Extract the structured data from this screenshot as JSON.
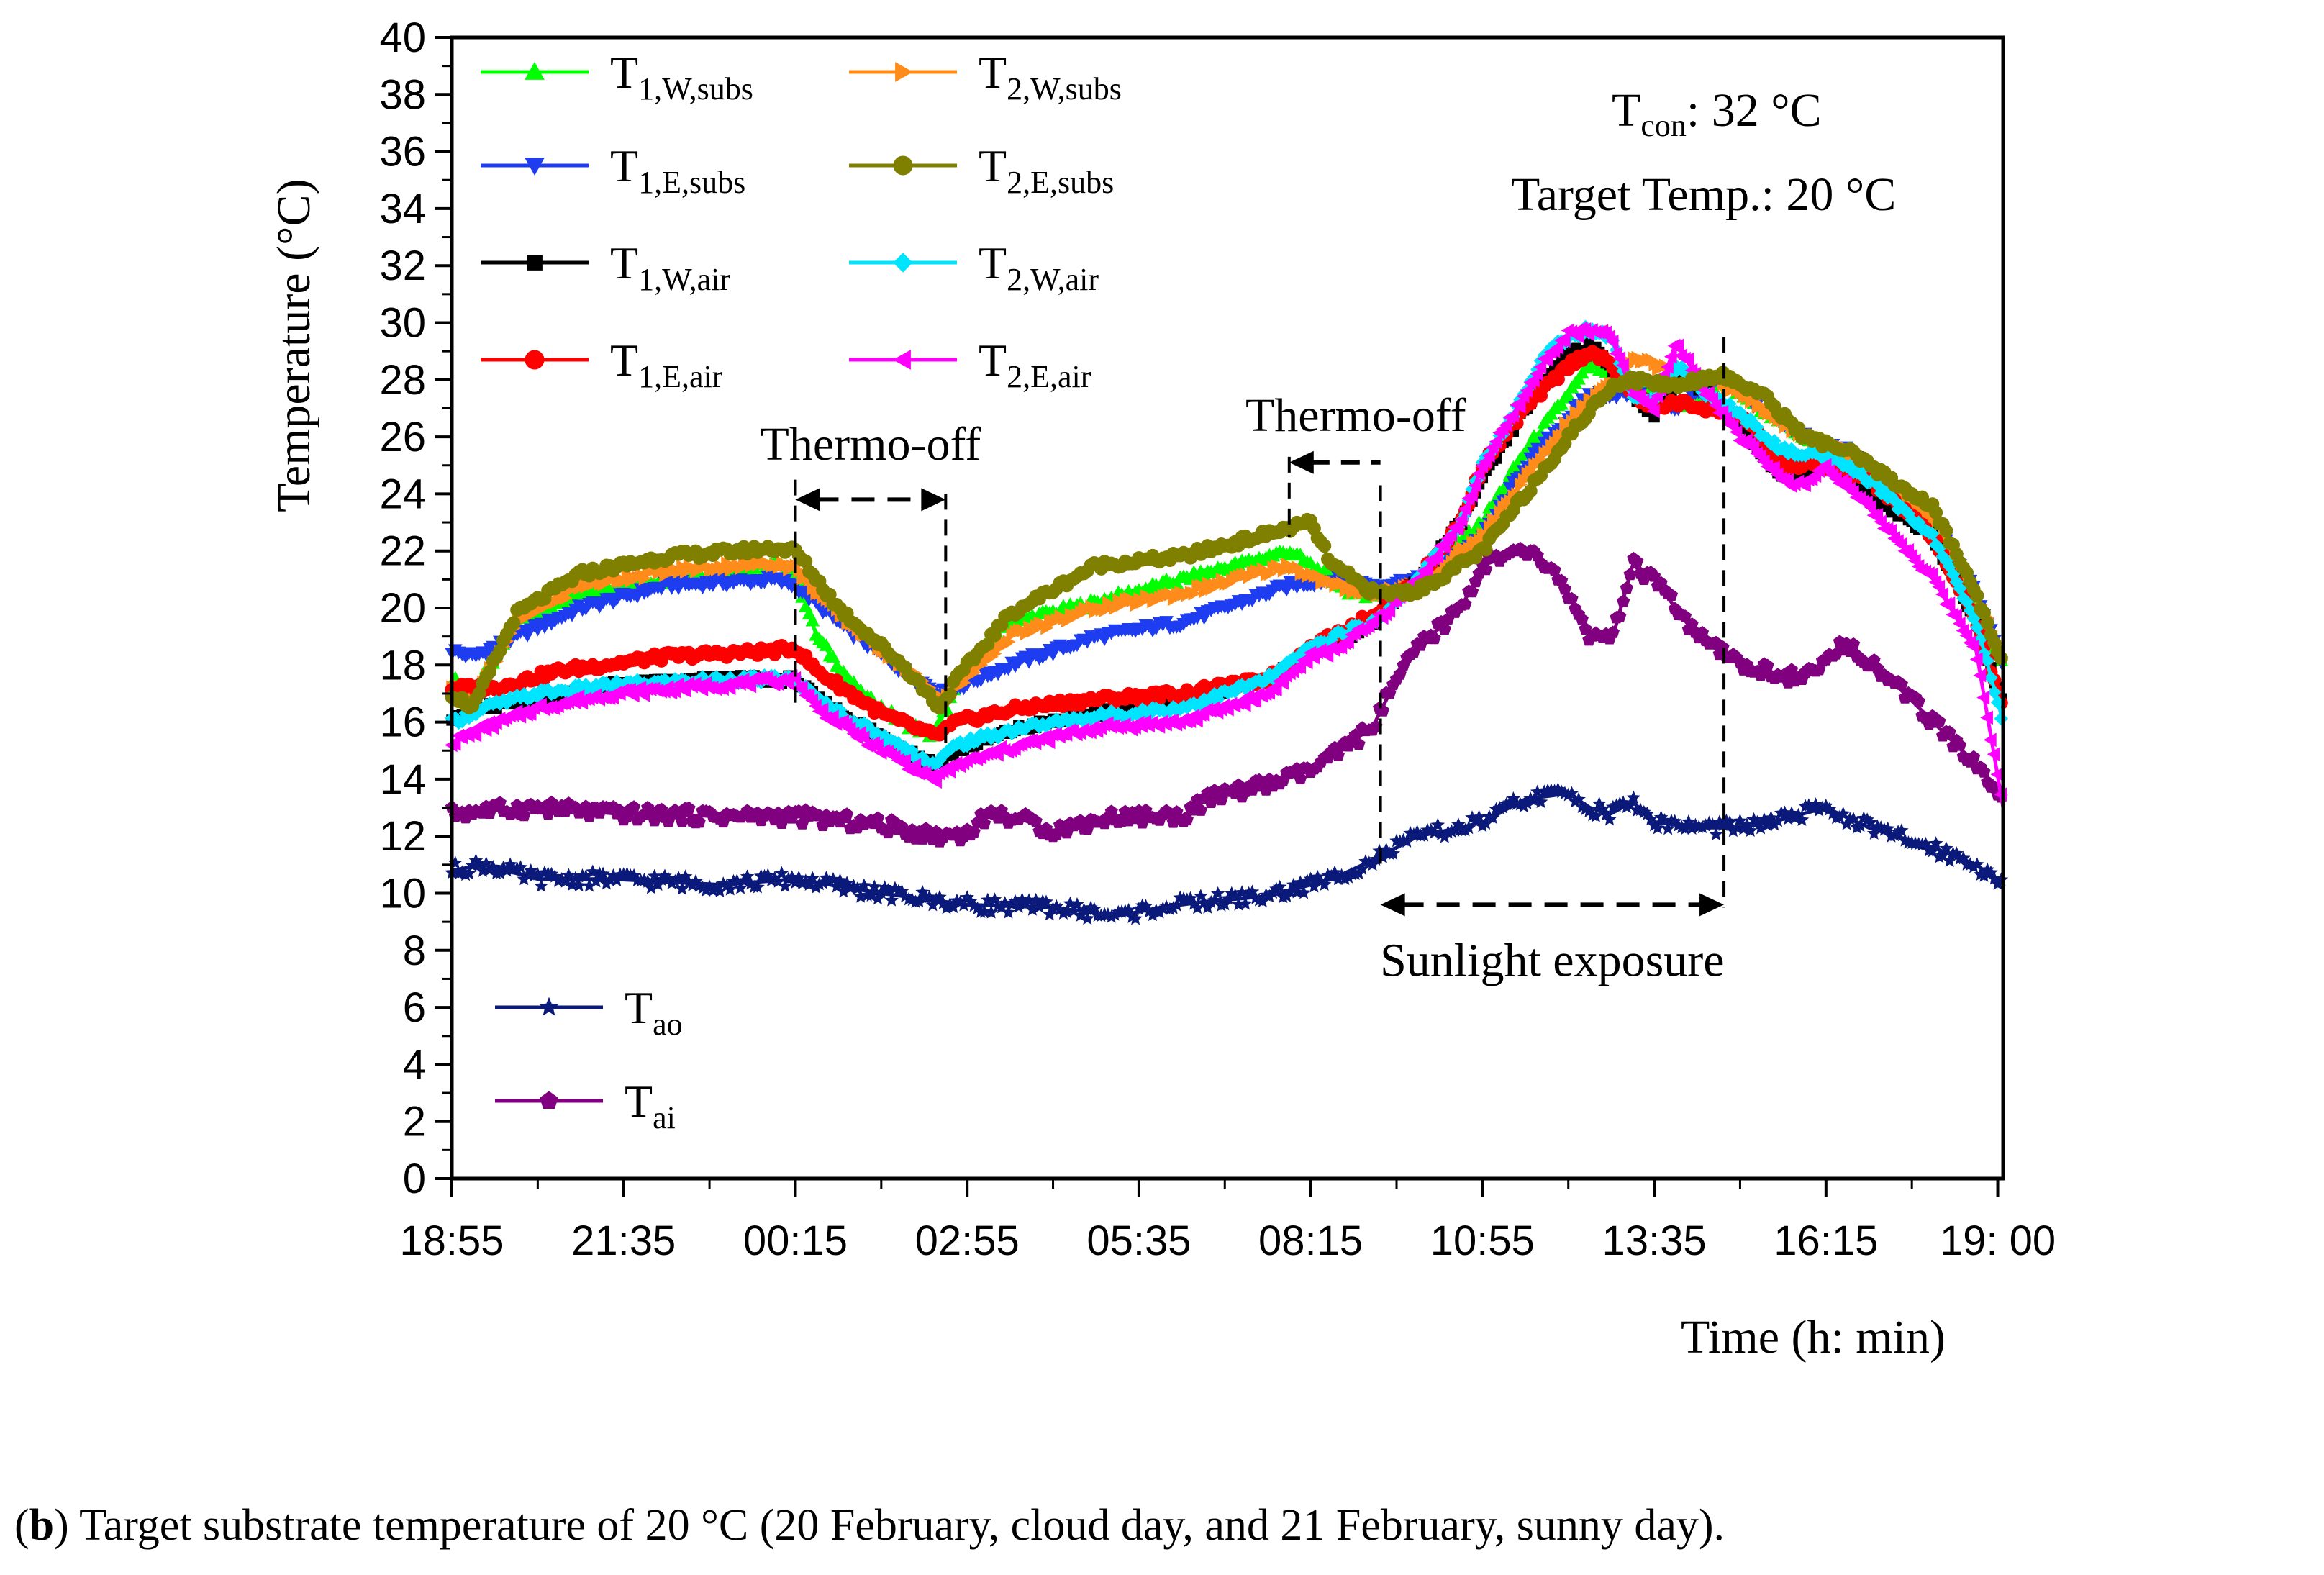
{
  "chart_data": {
    "type": "line",
    "title": "",
    "xlabel": "Time (h: min)",
    "ylabel": "Temperature (°C)",
    "ylim": [
      0,
      40
    ],
    "yticks": [
      0,
      2,
      4,
      6,
      8,
      10,
      12,
      14,
      16,
      18,
      20,
      22,
      24,
      26,
      28,
      30,
      32,
      34,
      36,
      38,
      40
    ],
    "xlim": [
      0,
      1445
    ],
    "xticks": [
      {
        "t": 0,
        "label": "18:55"
      },
      {
        "t": 160,
        "label": "21:35"
      },
      {
        "t": 320,
        "label": "00:15"
      },
      {
        "t": 480,
        "label": "02:55"
      },
      {
        "t": 640,
        "label": "05:35"
      },
      {
        "t": 800,
        "label": "08:15"
      },
      {
        "t": 960,
        "label": "10:55"
      },
      {
        "t": 1120,
        "label": "13:35"
      },
      {
        "t": 1280,
        "label": "16:15"
      },
      {
        "t": 1440,
        "label": "19: 00"
      }
    ],
    "x_unit": "minutes after 18:55",
    "series": [
      {
        "name": "T1,W,subs",
        "main": "T",
        "sub": "1,W,subs",
        "color": "#00ff00",
        "marker": "triangle-up",
        "x": [
          0,
          20,
          60,
          120,
          200,
          300,
          320,
          340,
          380,
          420,
          450,
          460,
          480,
          520,
          600,
          680,
          780,
          820,
          840,
          880,
          900,
          960,
          1000,
          1040,
          1060,
          1100,
          1140,
          1180,
          1220,
          1260,
          1300,
          1380,
          1420,
          1445
        ],
        "y": [
          17.5,
          17,
          19.5,
          20.5,
          21,
          21.5,
          21.2,
          19,
          17,
          16,
          15.5,
          16.5,
          18,
          19.5,
          20.2,
          21,
          22,
          21,
          20.5,
          20.5,
          21,
          23,
          25.5,
          27.5,
          28.5,
          28,
          27,
          28,
          27,
          26,
          25.5,
          23,
          20,
          18
        ]
      },
      {
        "name": "T1,E,subs",
        "main": "T",
        "sub": "1,E,subs",
        "color": "#1f3df0",
        "marker": "triangle-down",
        "x": [
          0,
          20,
          60,
          120,
          200,
          300,
          320,
          360,
          420,
          455,
          470,
          520,
          600,
          680,
          780,
          820,
          860,
          900,
          960,
          1000,
          1060,
          1100,
          1140,
          1180,
          1220,
          1260,
          1300,
          1380,
          1420,
          1445
        ],
        "y": [
          18.5,
          18.3,
          19,
          20,
          20.8,
          21,
          20.8,
          19.5,
          17.8,
          17,
          17.2,
          18,
          19,
          19.5,
          20.8,
          21,
          20.8,
          21,
          22.5,
          25,
          27.5,
          27.5,
          27,
          28,
          27,
          26,
          25.5,
          23,
          20.5,
          18
        ]
      },
      {
        "name": "T1,W,air",
        "main": "T",
        "sub": "1,W,air",
        "color": "#000000",
        "marker": "square",
        "x": [
          0,
          30,
          80,
          150,
          250,
          320,
          340,
          400,
          450,
          470,
          530,
          600,
          680,
          760,
          800,
          820,
          860,
          900,
          940,
          960,
          1000,
          1020,
          1040,
          1060,
          1080,
          1100,
          1120,
          1140,
          1170,
          1200,
          1240,
          1280,
          1320,
          1380,
          1420,
          1445
        ],
        "y": [
          16.2,
          16.5,
          16.8,
          17.3,
          17.5,
          17.5,
          16.8,
          15.5,
          14.5,
          15,
          15.8,
          16.3,
          16.8,
          17.5,
          18.5,
          18.8,
          19.5,
          21,
          23,
          24.5,
          27,
          28,
          29,
          29.2,
          28.5,
          27.5,
          26.8,
          28,
          27.5,
          26.5,
          24.5,
          25,
          24,
          22.5,
          19.5,
          16.5
        ]
      },
      {
        "name": "T1,E,air",
        "main": "T",
        "sub": "1,E,air",
        "color": "#ff0000",
        "marker": "circle",
        "x": [
          0,
          40,
          100,
          200,
          300,
          320,
          340,
          400,
          450,
          470,
          530,
          600,
          680,
          760,
          800,
          820,
          860,
          900,
          940,
          960,
          1000,
          1040,
          1060,
          1080,
          1100,
          1120,
          1140,
          1170,
          1200,
          1240,
          1280,
          1320,
          1380,
          1420,
          1445
        ],
        "y": [
          17.2,
          17.2,
          17.8,
          18.3,
          18.5,
          18.6,
          17.8,
          16.3,
          15.5,
          16,
          16.5,
          16.8,
          17,
          17.5,
          18.6,
          19,
          19.8,
          21,
          23,
          25,
          27,
          28.5,
          29,
          28.5,
          27.5,
          27,
          27.2,
          27,
          26.8,
          25,
          25,
          24.5,
          22.5,
          19.5,
          16.5
        ]
      },
      {
        "name": "T2,W,subs",
        "main": "T",
        "sub": "2,W,subs",
        "color": "#ff8c1a",
        "marker": "triangle-right",
        "x": [
          0,
          20,
          60,
          120,
          200,
          300,
          320,
          360,
          420,
          455,
          470,
          520,
          600,
          680,
          780,
          820,
          860,
          900,
          960,
          1000,
          1040,
          1080,
          1100,
          1140,
          1180,
          1220,
          1260,
          1300,
          1380,
          1420,
          1445
        ],
        "y": [
          17.3,
          16.8,
          19.5,
          20.8,
          21.3,
          21.6,
          21.4,
          19.8,
          18,
          16.8,
          17.2,
          19,
          20,
          20.5,
          21.5,
          20.8,
          20.5,
          20.8,
          22.5,
          24.5,
          26.5,
          28,
          28.8,
          28.3,
          28,
          27,
          26,
          25.5,
          23,
          20.5,
          18.2
        ]
      },
      {
        "name": "T2,E,subs",
        "main": "T",
        "sub": "2,E,subs",
        "color": "#808000",
        "marker": "circle",
        "x": [
          0,
          20,
          60,
          120,
          200,
          300,
          320,
          360,
          420,
          455,
          470,
          520,
          600,
          680,
          780,
          800,
          820,
          860,
          900,
          960,
          1000,
          1040,
          1080,
          1100,
          1140,
          1180,
          1220,
          1260,
          1300,
          1380,
          1420,
          1445
        ],
        "y": [
          17,
          16.5,
          19.8,
          21.2,
          21.8,
          22.1,
          22,
          20,
          18,
          16.5,
          17.5,
          19.8,
          21.5,
          21.8,
          22.8,
          23,
          21.5,
          20.5,
          20.6,
          22,
          24,
          26,
          27.8,
          28,
          27.8,
          28.2,
          27.5,
          26,
          25.5,
          23.5,
          20.5,
          18
        ]
      },
      {
        "name": "T2,W,air",
        "main": "T",
        "sub": "2,W,air",
        "color": "#00e5ff",
        "marker": "diamond",
        "x": [
          0,
          30,
          80,
          150,
          250,
          320,
          340,
          400,
          450,
          470,
          530,
          600,
          680,
          760,
          800,
          820,
          860,
          900,
          940,
          960,
          1000,
          1020,
          1040,
          1060,
          1080,
          1100,
          1120,
          1140,
          1170,
          1200,
          1240,
          1280,
          1320,
          1380,
          1420,
          1445
        ],
        "y": [
          16,
          16.5,
          17,
          17.3,
          17.5,
          17.5,
          16.8,
          15.5,
          14.5,
          15.2,
          15.8,
          16.2,
          16.5,
          17.5,
          18.6,
          19,
          19.5,
          21,
          23,
          25,
          27.5,
          29,
          29.5,
          29.8,
          29.5,
          27.5,
          27.3,
          28.5,
          27.5,
          26.8,
          25.5,
          25.3,
          24.5,
          22.5,
          19.5,
          16
        ]
      },
      {
        "name": "T2,E,air",
        "main": "T",
        "sub": "2,E,air",
        "color": "#ff00ff",
        "marker": "triangle-left",
        "x": [
          0,
          30,
          80,
          150,
          250,
          320,
          340,
          400,
          450,
          470,
          530,
          600,
          680,
          760,
          800,
          820,
          860,
          900,
          940,
          960,
          1000,
          1020,
          1040,
          1060,
          1080,
          1100,
          1120,
          1140,
          1170,
          1200,
          1240,
          1260,
          1280,
          1320,
          1380,
          1420,
          1445
        ],
        "y": [
          15.3,
          15.8,
          16.5,
          17,
          17.3,
          17.5,
          16.5,
          15,
          14,
          14.5,
          15.2,
          15.8,
          16,
          17,
          18.3,
          18.5,
          19.5,
          21,
          23,
          25,
          27.5,
          28.8,
          29.6,
          29.7,
          29.5,
          27.5,
          27,
          29.3,
          27.5,
          26,
          24.5,
          24.3,
          25,
          23.5,
          21,
          18.5,
          13
        ]
      },
      {
        "name": "Tao",
        "main": "T",
        "sub": "ao",
        "color": "#0b1a7a",
        "marker": "star",
        "x": [
          0,
          30,
          80,
          150,
          250,
          320,
          400,
          480,
          560,
          620,
          660,
          700,
          760,
          820,
          860,
          900,
          940,
          960,
          1000,
          1040,
          1060,
          1080,
          1100,
          1120,
          1160,
          1200,
          1240,
          1280,
          1320,
          1380,
          1420,
          1445
        ],
        "y": [
          10.8,
          11,
          10.5,
          10.5,
          10.3,
          10.5,
          10,
          9.6,
          9.5,
          9.2,
          9.5,
          9.7,
          9.9,
          10.5,
          11.2,
          12,
          12.3,
          12.5,
          13.3,
          13.5,
          13,
          12.8,
          13.2,
          12.5,
          12.3,
          12.3,
          12.6,
          13,
          12.3,
          11.6,
          11,
          10.3
        ]
      },
      {
        "name": "Tai",
        "main": "T",
        "sub": "ai",
        "color": "#800080",
        "marker": "pentagon",
        "x": [
          0,
          30,
          80,
          150,
          250,
          320,
          400,
          450,
          480,
          500,
          530,
          560,
          620,
          680,
          700,
          720,
          760,
          800,
          840,
          860,
          880,
          900,
          940,
          960,
          1000,
          1020,
          1040,
          1060,
          1080,
          1100,
          1120,
          1160,
          1200,
          1260,
          1300,
          1340,
          1380,
          1420,
          1445
        ],
        "y": [
          12.8,
          12.9,
          13,
          12.8,
          12.7,
          12.7,
          12.4,
          12,
          12.1,
          12.8,
          12.6,
          12.2,
          12.7,
          12.7,
          13.2,
          13.5,
          13.8,
          14.3,
          15.3,
          16,
          17.5,
          18.6,
          20,
          21.5,
          22,
          21.5,
          20.5,
          19,
          18.8,
          21.5,
          21,
          19,
          18,
          17.5,
          18.8,
          17.5,
          16,
          14.5,
          13.3
        ]
      }
    ],
    "legend": {
      "placement": "top-left (series 1-8) and lower-left (Tao, Tai)"
    },
    "annotations": [
      {
        "text": "Thermo-off",
        "x_from": 320,
        "x_to": 460
      },
      {
        "text": "Thermo-off",
        "x_from": 780,
        "x_to": 865
      },
      {
        "text": "Sunlight exposure",
        "x_from": 865,
        "x_to": 1185
      }
    ],
    "conditions": {
      "tcon_main": "T",
      "tcon_sub": "con",
      "tcon_value": ": 32 °C",
      "target": "Target Temp.: 20 °C"
    }
  },
  "caption": {
    "prefix": "(",
    "letter": "b",
    "text": ") Target substrate temperature of 20 °C (20 February, cloud day, and 21 February, sunny day)."
  }
}
